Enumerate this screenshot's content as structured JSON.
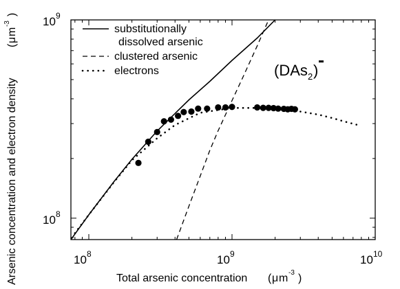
{
  "chart_data": {
    "type": "line",
    "x_scale": "log",
    "y_scale": "log",
    "xlim": [
      75000000,
      10000000000
    ],
    "ylim": [
      78000000,
      1000000000
    ],
    "xlabel": {
      "main": "Total arsenic concentration",
      "unit_prefix": "(",
      "mu": "μ",
      "unit_m": "m",
      "unit_exp": "-3",
      "unit_suffix": ")"
    },
    "ylabel": {
      "main": "Arsenic concentration and electron density",
      "unit_prefix": "(",
      "mu": "μ",
      "unit_m": "m",
      "unit_exp": "-3",
      "unit_suffix": ")"
    },
    "x_ticks": [
      {
        "value": 100000000,
        "base": "10",
        "exp": "8"
      },
      {
        "value": 1000000000,
        "base": "10",
        "exp": "9"
      },
      {
        "value": 10000000000,
        "base": "10",
        "exp": "10"
      }
    ],
    "y_ticks": [
      {
        "value": 100000000,
        "base": "10",
        "exp": "8"
      },
      {
        "value": 1000000000,
        "base": "10",
        "exp": "9"
      }
    ],
    "annotation": {
      "open": "(DAs",
      "sub": "2",
      "close": ")",
      "charge": "-"
    },
    "legend": {
      "placement": "top-left",
      "entries": [
        {
          "style": "solid",
          "lines": [
            "substitutionally",
            "dissolved arsenic"
          ]
        },
        {
          "style": "dashed",
          "lines": [
            "clustered arsenic"
          ]
        },
        {
          "style": "dotted",
          "lines": [
            "electrons"
          ]
        }
      ]
    },
    "series": [
      {
        "style": "solid",
        "x": [
          75000000,
          100000000,
          150000000,
          200000000,
          300000000,
          500000000,
          700000000,
          1000000000,
          1500000000,
          2000000000
        ],
        "y": [
          78000000,
          104000000,
          153000000,
          198000000,
          275000000,
          395000000,
          490000000,
          625000000,
          810000000,
          1000000000
        ]
      },
      {
        "style": "dashed",
        "x": [
          410000000,
          500000000,
          600000000,
          700000000,
          800000000,
          1000000000,
          1200000000,
          1500000000,
          1800000000
        ],
        "y": [
          78000000,
          115000000,
          163000000,
          220000000,
          276000000,
          392000000,
          520000000,
          740000000,
          1000000000
        ]
      },
      {
        "style": "dotted",
        "x": [
          80000000,
          100000000,
          150000000,
          200000000,
          300000000,
          400000000,
          600000000,
          1000000000,
          1500000000,
          2000000000,
          3000000000,
          4000000000,
          5000000000,
          6000000000,
          8000000000
        ],
        "y": [
          84000000,
          104000000,
          152000000,
          196000000,
          253000000,
          295000000,
          340000000,
          360000000,
          360000000,
          356000000,
          345000000,
          333000000,
          320000000,
          308000000,
          292000000
        ]
      },
      {
        "style": "points",
        "x": [
          222000000,
          260000000,
          300000000,
          335000000,
          375000000,
          420000000,
          460000000,
          520000000,
          580000000,
          670000000,
          800000000,
          900000000,
          1000000000,
          1500000000,
          1650000000,
          1800000000,
          1950000000,
          2100000000,
          2300000000,
          2450000000,
          2600000000,
          2750000000
        ],
        "y": [
          190000000,
          243000000,
          272000000,
          308000000,
          314000000,
          328000000,
          343000000,
          345000000,
          357000000,
          357000000,
          362000000,
          362000000,
          364000000,
          362000000,
          360000000,
          360000000,
          359000000,
          357000000,
          356000000,
          354000000,
          356000000,
          354000000
        ]
      }
    ]
  }
}
